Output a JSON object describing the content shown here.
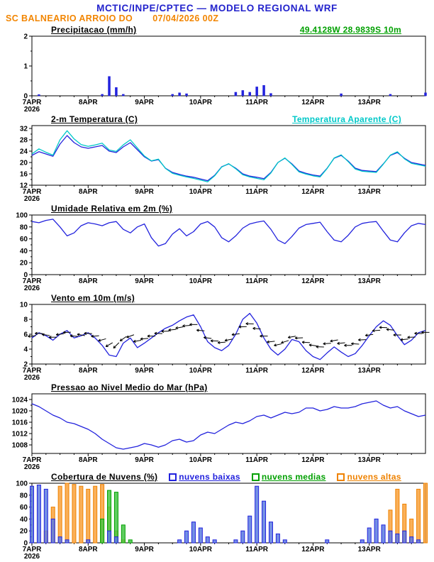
{
  "header": {
    "line1": "MCTIC/INPE/CPTEC — MODELO REGIONAL WRF",
    "station": "SC BALNEARIO ARROIO DO",
    "datetime": "07/04/2026 00Z",
    "coords": "49.4128W 28.9839S 10m"
  },
  "colors": {
    "title_blue": "#2222cc",
    "orange": "#f28500",
    "green": "#00a000",
    "cyan": "#00c8c8",
    "line_blue": "#2222dd",
    "legend_low_blue": "#2222dd",
    "legend_mid_green": "#00a000",
    "legend_high_orange": "#ef8200",
    "black": "#000000"
  },
  "x_axis": {
    "range_hours": [
      0,
      168
    ],
    "step_hours": 3,
    "ticks": [
      {
        "label": "7APR",
        "sub": "2026",
        "h": 0
      },
      {
        "label": "8APR",
        "h": 24
      },
      {
        "label": "9APR",
        "h": 48
      },
      {
        "label": "10APR",
        "h": 72
      },
      {
        "label": "11APR",
        "h": 96
      },
      {
        "label": "12APR",
        "h": 120
      },
      {
        "label": "13APR",
        "h": 144
      }
    ]
  },
  "chart_data": [
    {
      "id": "precipitation",
      "type": "bar",
      "title": "Precipitacao (mm/h)",
      "ylim": [
        0,
        2
      ],
      "yticks": [
        0,
        1,
        2
      ],
      "color": "#2222dd",
      "values": [
        0,
        0.04,
        0,
        0,
        0,
        0,
        0,
        0,
        0,
        0,
        0.05,
        0.65,
        0.28,
        0.05,
        0,
        0,
        0,
        0,
        0,
        0,
        0.05,
        0.1,
        0.07,
        0,
        0,
        0,
        0,
        0,
        0,
        0.12,
        0.18,
        0.12,
        0.3,
        0.35,
        0.08,
        0,
        0,
        0,
        0,
        0,
        0,
        0,
        0,
        0,
        0.07,
        0,
        0,
        0,
        0,
        0,
        0,
        0.05,
        0,
        0,
        0,
        0,
        0.1
      ]
    },
    {
      "id": "temperature",
      "type": "line",
      "title": "2-m Temperatura (C)",
      "right_label": "Temperatura Aparente (C)",
      "ylim": [
        12,
        33
      ],
      "yticks": [
        12,
        16,
        20,
        24,
        28,
        32
      ],
      "series": [
        {
          "name": "2-m Temperatura (C)",
          "color": "#2222dd",
          "values": [
            22.5,
            23.8,
            23.0,
            22.2,
            26.5,
            29.5,
            27.0,
            25.5,
            25.0,
            25.5,
            26.0,
            24.0,
            23.5,
            25.5,
            27.0,
            24.5,
            22.0,
            20.5,
            21.0,
            18.0,
            16.5,
            15.8,
            15.2,
            14.8,
            14.2,
            13.6,
            15.5,
            18.5,
            19.5,
            18.0,
            16.0,
            15.2,
            14.8,
            14.3,
            16.5,
            20.0,
            21.5,
            19.5,
            17.0,
            16.2,
            15.6,
            15.2,
            18.0,
            21.5,
            22.5,
            20.5,
            18.0,
            17.2,
            17.0,
            16.8,
            19.5,
            22.5,
            23.5,
            21.5,
            20.0,
            19.5,
            19.0
          ]
        },
        {
          "name": "Temperatura Aparente (C)",
          "color": "#00c8c8",
          "values": [
            23.0,
            24.8,
            23.6,
            22.6,
            28.0,
            31.2,
            28.3,
            26.3,
            25.7,
            26.2,
            26.8,
            24.4,
            23.9,
            26.2,
            28.0,
            25.1,
            22.3,
            20.6,
            21.2,
            17.9,
            16.2,
            15.5,
            14.9,
            14.4,
            13.8,
            13.2,
            15.3,
            18.4,
            19.6,
            17.8,
            15.7,
            14.9,
            14.4,
            13.9,
            16.3,
            20.0,
            21.6,
            19.3,
            16.7,
            15.9,
            15.3,
            14.9,
            17.9,
            21.6,
            22.7,
            20.3,
            17.7,
            16.9,
            16.7,
            16.5,
            19.4,
            22.6,
            23.8,
            21.3,
            19.7,
            19.2,
            18.7
          ]
        }
      ]
    },
    {
      "id": "humidity",
      "type": "line",
      "title": "Umidade Relativa em 2m (%)",
      "ylim": [
        0,
        100
      ],
      "yticks": [
        0,
        20,
        40,
        60,
        80,
        100
      ],
      "series": [
        {
          "name": "Umidade Relativa",
          "color": "#2222dd",
          "values": [
            89,
            87,
            91,
            93,
            80,
            65,
            70,
            82,
            87,
            85,
            82,
            87,
            89,
            76,
            70,
            80,
            85,
            62,
            48,
            52,
            68,
            77,
            65,
            72,
            85,
            89,
            80,
            62,
            55,
            65,
            78,
            85,
            88,
            90,
            76,
            58,
            52,
            64,
            78,
            84,
            86,
            88,
            72,
            58,
            55,
            66,
            80,
            86,
            88,
            89,
            73,
            58,
            55,
            70,
            82,
            86,
            84
          ]
        }
      ]
    },
    {
      "id": "wind",
      "type": "line-barbs",
      "title": "Vento em 10m (m/s)",
      "ylim": [
        2,
        10
      ],
      "yticks": [
        2,
        4,
        6,
        8,
        10
      ],
      "color": "#2222dd",
      "values": [
        5.5,
        6.2,
        5.8,
        5.2,
        6.0,
        6.5,
        5.5,
        5.8,
        6.2,
        5.5,
        4.5,
        3.2,
        3.0,
        4.8,
        5.5,
        4.2,
        4.8,
        5.5,
        6.2,
        6.8,
        7.2,
        7.8,
        8.3,
        8.6,
        7.0,
        5.0,
        4.2,
        3.8,
        4.5,
        6.0,
        8.0,
        8.8,
        7.5,
        5.5,
        4.0,
        3.2,
        4.0,
        5.3,
        5.0,
        3.8,
        3.0,
        2.6,
        3.5,
        4.3,
        3.6,
        3.0,
        3.4,
        4.5,
        5.8,
        7.0,
        7.8,
        7.2,
        5.8,
        4.6,
        5.2,
        6.2,
        6.5
      ],
      "dirs": [
        185,
        178,
        172,
        180,
        188,
        182,
        175,
        170,
        178,
        185,
        195,
        210,
        225,
        215,
        200,
        190,
        185,
        180,
        178,
        182,
        186,
        190,
        185,
        180,
        175,
        172,
        178,
        185,
        192,
        188,
        182,
        178,
        175,
        180,
        186,
        192,
        198,
        190,
        182,
        176,
        172,
        178,
        184,
        190,
        186,
        180,
        176,
        182,
        188,
        184,
        178,
        174,
        180,
        186,
        182,
        178,
        180
      ]
    },
    {
      "id": "pressure",
      "type": "line",
      "title": "Pressao ao Nivel Medio do Mar (hPa)",
      "ylim": [
        1005,
        1026
      ],
      "yticks": [
        1008,
        1012,
        1016,
        1020,
        1024
      ],
      "series": [
        {
          "name": "Pressao ao Nivel Medio do Mar",
          "color": "#2222dd",
          "values": [
            1022.5,
            1021.5,
            1020.0,
            1018.5,
            1017.5,
            1016.0,
            1015.5,
            1014.5,
            1013.5,
            1012.0,
            1010.0,
            1008.5,
            1007.0,
            1006.5,
            1007.0,
            1007.5,
            1008.5,
            1008.0,
            1007.2,
            1008.0,
            1009.5,
            1010.0,
            1009.0,
            1009.5,
            1011.5,
            1012.5,
            1012.0,
            1013.5,
            1015.0,
            1016.0,
            1015.5,
            1016.5,
            1018.0,
            1018.5,
            1017.5,
            1018.5,
            1019.5,
            1019.0,
            1019.5,
            1021.0,
            1021.0,
            1020.0,
            1020.5,
            1021.5,
            1021.0,
            1021.0,
            1021.5,
            1022.5,
            1023.0,
            1023.5,
            1022.0,
            1021.0,
            1021.5,
            1020.0,
            1019.0,
            1018.0,
            1018.5
          ]
        }
      ]
    },
    {
      "id": "clouds",
      "type": "bars3",
      "title": "Cobertura de Nuvens (%)",
      "ylim": [
        0,
        100
      ],
      "yticks": [
        0,
        20,
        40,
        60,
        80,
        100
      ],
      "series": [
        {
          "id": "nuvens-altas",
          "name": "nuvens altas",
          "fill": "#f9a23c",
          "stroke": "#ef8200",
          "values": [
            0,
            0,
            20,
            60,
            95,
            100,
            98,
            95,
            90,
            95,
            98,
            60,
            20,
            5,
            0,
            0,
            0,
            0,
            0,
            0,
            0,
            0,
            0,
            0,
            0,
            0,
            0,
            0,
            0,
            0,
            0,
            0,
            0,
            0,
            0,
            0,
            0,
            0,
            0,
            0,
            0,
            0,
            0,
            0,
            0,
            0,
            0,
            0,
            0,
            0,
            0,
            55,
            90,
            65,
            40,
            90,
            100
          ]
        },
        {
          "id": "nuvens-medias",
          "name": "nuvens medias",
          "fill": "#44c544",
          "stroke": "#00a000",
          "values": [
            0,
            0,
            0,
            0,
            0,
            0,
            0,
            0,
            0,
            0,
            40,
            88,
            85,
            30,
            5,
            0,
            0,
            0,
            0,
            0,
            0,
            0,
            0,
            0,
            0,
            0,
            0,
            0,
            0,
            0,
            0,
            0,
            0,
            0,
            0,
            0,
            0,
            0,
            0,
            0,
            0,
            0,
            0,
            0,
            0,
            0,
            0,
            0,
            0,
            0,
            0,
            0,
            0,
            0,
            0,
            0,
            0
          ]
        },
        {
          "id": "nuvens-baixas",
          "name": "nuvens baixas",
          "fill": "#5c7ce0",
          "stroke": "#2222dd",
          "values": [
            95,
            97,
            90,
            40,
            10,
            5,
            0,
            0,
            5,
            0,
            0,
            20,
            10,
            0,
            0,
            0,
            0,
            0,
            0,
            0,
            0,
            5,
            20,
            35,
            25,
            10,
            5,
            0,
            0,
            5,
            20,
            45,
            95,
            70,
            35,
            15,
            5,
            0,
            0,
            0,
            0,
            0,
            5,
            0,
            0,
            0,
            0,
            5,
            25,
            40,
            30,
            20,
            15,
            20,
            10,
            5,
            0
          ]
        }
      ]
    }
  ]
}
